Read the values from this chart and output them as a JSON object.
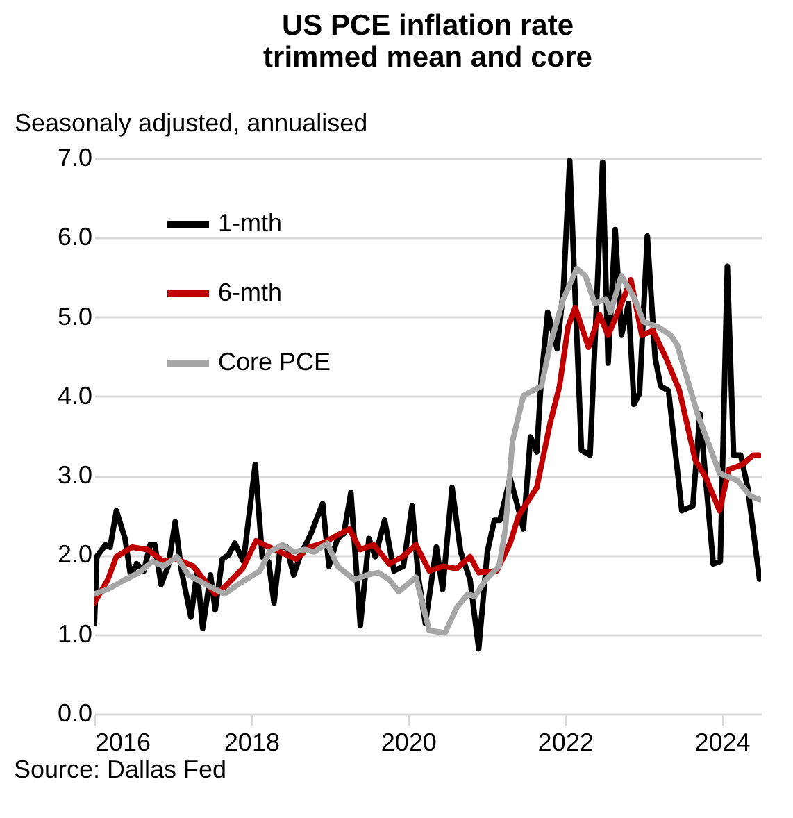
{
  "chart_data": {
    "type": "line",
    "title": "US PCE inflation rate\ntrimmed mean and core",
    "ylabel": "Seasonaly adjusted, annualised",
    "xlim": [
      2016,
      2024.5
    ],
    "xticks": [
      2016,
      2018,
      2020,
      2022,
      2024
    ],
    "ylim": [
      0,
      7
    ],
    "yticks": [
      {
        "value": 0,
        "label": "0.0"
      },
      {
        "value": 1,
        "label": "1.0"
      },
      {
        "value": 2,
        "label": "2.0"
      },
      {
        "value": 3,
        "label": "3.0"
      },
      {
        "value": 4,
        "label": "4.0"
      },
      {
        "value": 5,
        "label": "5.0"
      },
      {
        "value": 6,
        "label": "6.0"
      },
      {
        "value": 7,
        "label": "7.0"
      }
    ],
    "grid": "y",
    "legend": "top left",
    "line_style": "solid",
    "marker": "none",
    "annotations": [
      "Source: Dallas Fed"
    ],
    "series": [
      {
        "name": "1-mth",
        "color": "#000000",
        "x": [
          2016.0,
          2016.03,
          2016.14,
          2016.2,
          2016.28,
          2016.39,
          2016.46,
          2016.54,
          2016.63,
          2016.71,
          2016.77,
          2016.85,
          2016.94,
          2017.03,
          2017.11,
          2017.23,
          2017.31,
          2017.38,
          2017.48,
          2017.54,
          2017.63,
          2017.71,
          2017.79,
          2017.9,
          2018.05,
          2018.14,
          2018.22,
          2018.29,
          2018.37,
          2018.45,
          2018.54,
          2018.62,
          2018.76,
          2018.91,
          2018.99,
          2019.1,
          2019.18,
          2019.27,
          2019.39,
          2019.5,
          2019.58,
          2019.7,
          2019.82,
          2019.94,
          2020.05,
          2020.13,
          2020.22,
          2020.36,
          2020.44,
          2020.56,
          2020.67,
          2020.79,
          2020.9,
          2021.01,
          2021.1,
          2021.17,
          2021.3,
          2021.39,
          2021.47,
          2021.56,
          2021.64,
          2021.7,
          2021.78,
          2021.9,
          2021.98,
          2022.06,
          2022.21,
          2022.32,
          2022.48,
          2022.55,
          2022.64,
          2022.72,
          2022.81,
          2022.88,
          2022.95,
          2023.05,
          2023.15,
          2023.22,
          2023.32,
          2023.49,
          2023.63,
          2023.72,
          2023.89,
          2023.98,
          2024.07,
          2024.15,
          2024.24,
          2024.33,
          2024.48
        ],
        "values": [
          1.14,
          1.98,
          2.13,
          2.1,
          2.56,
          2.21,
          1.75,
          1.89,
          1.8,
          2.13,
          2.13,
          1.63,
          1.86,
          2.42,
          1.8,
          1.22,
          1.8,
          1.08,
          1.75,
          1.31,
          1.95,
          2.0,
          2.15,
          1.92,
          3.14,
          1.98,
          1.92,
          1.4,
          2.1,
          2.1,
          1.75,
          1.98,
          2.27,
          2.65,
          1.86,
          2.21,
          2.27,
          2.79,
          1.11,
          2.21,
          1.98,
          2.44,
          1.8,
          1.86,
          2.62,
          1.73,
          1.14,
          2.1,
          1.57,
          2.85,
          2.04,
          1.69,
          0.82,
          2.04,
          2.44,
          2.44,
          2.97,
          2.64,
          2.33,
          3.49,
          3.3,
          4.25,
          5.06,
          4.6,
          5.35,
          6.97,
          3.32,
          3.26,
          6.95,
          4.42,
          6.1,
          4.77,
          5.17,
          3.9,
          4.04,
          6.02,
          4.48,
          4.13,
          4.07,
          2.56,
          2.62,
          3.78,
          1.89,
          1.92,
          5.64,
          3.26,
          3.26,
          2.85,
          1.7
        ]
      },
      {
        "name": "6-mth",
        "color": "#c00000",
        "x": [
          2016.0,
          2016.17,
          2016.28,
          2016.48,
          2016.68,
          2016.88,
          2017.05,
          2017.26,
          2017.54,
          2017.66,
          2017.89,
          2018.06,
          2018.23,
          2018.37,
          2018.57,
          2018.74,
          2018.91,
          2019.02,
          2019.25,
          2019.39,
          2019.56,
          2019.76,
          2019.93,
          2020.1,
          2020.27,
          2020.44,
          2020.62,
          2020.79,
          2020.9,
          2021.13,
          2021.3,
          2021.41,
          2021.64,
          2021.81,
          2021.93,
          2022.04,
          2022.13,
          2022.3,
          2022.44,
          2022.55,
          2022.72,
          2022.84,
          2022.98,
          2023.12,
          2023.29,
          2023.46,
          2023.66,
          2023.8,
          2023.97,
          2024.09,
          2024.26,
          2024.4,
          2024.48
        ],
        "values": [
          1.4,
          1.69,
          1.98,
          2.1,
          2.07,
          1.92,
          1.95,
          1.86,
          1.51,
          1.6,
          1.83,
          2.18,
          2.1,
          2.04,
          1.95,
          2.1,
          2.15,
          2.21,
          2.33,
          2.07,
          2.13,
          1.89,
          1.98,
          2.13,
          1.8,
          1.86,
          1.83,
          1.98,
          1.78,
          1.8,
          2.15,
          2.5,
          2.85,
          3.66,
          4.13,
          4.88,
          5.12,
          4.62,
          5.03,
          4.77,
          5.17,
          5.47,
          4.77,
          4.83,
          4.48,
          4.07,
          3.2,
          2.97,
          2.56,
          3.08,
          3.14,
          3.26,
          3.26
        ]
      },
      {
        "name": "Core PCE",
        "color": "#a6a6a6",
        "x": [
          2016.0,
          2016.17,
          2016.39,
          2016.57,
          2016.74,
          2016.88,
          2017.05,
          2017.2,
          2017.42,
          2017.66,
          2017.83,
          2018.11,
          2018.23,
          2018.4,
          2018.54,
          2018.68,
          2018.8,
          2018.97,
          2019.1,
          2019.31,
          2019.48,
          2019.62,
          2019.76,
          2019.88,
          2020.1,
          2020.27,
          2020.47,
          2020.62,
          2020.76,
          2020.85,
          2020.99,
          2021.16,
          2021.24,
          2021.33,
          2021.47,
          2021.7,
          2021.81,
          2021.98,
          2022.15,
          2022.26,
          2022.38,
          2022.52,
          2022.58,
          2022.72,
          2022.89,
          2023.0,
          2023.18,
          2023.35,
          2023.43,
          2023.55,
          2023.69,
          2023.97,
          2024.2,
          2024.37,
          2024.48
        ],
        "values": [
          1.51,
          1.57,
          1.69,
          1.78,
          1.92,
          1.86,
          1.98,
          1.75,
          1.63,
          1.51,
          1.63,
          1.8,
          2.04,
          2.13,
          2.04,
          2.07,
          2.04,
          2.15,
          1.86,
          1.69,
          1.75,
          1.78,
          1.69,
          1.54,
          1.72,
          1.05,
          1.02,
          1.34,
          1.51,
          1.48,
          1.69,
          1.86,
          2.33,
          3.43,
          4.01,
          4.13,
          4.65,
          5.23,
          5.61,
          5.52,
          5.17,
          5.23,
          5.06,
          5.52,
          5.23,
          4.94,
          4.88,
          4.77,
          4.65,
          4.25,
          3.78,
          3.03,
          2.94,
          2.74,
          2.7
        ]
      }
    ]
  }
}
